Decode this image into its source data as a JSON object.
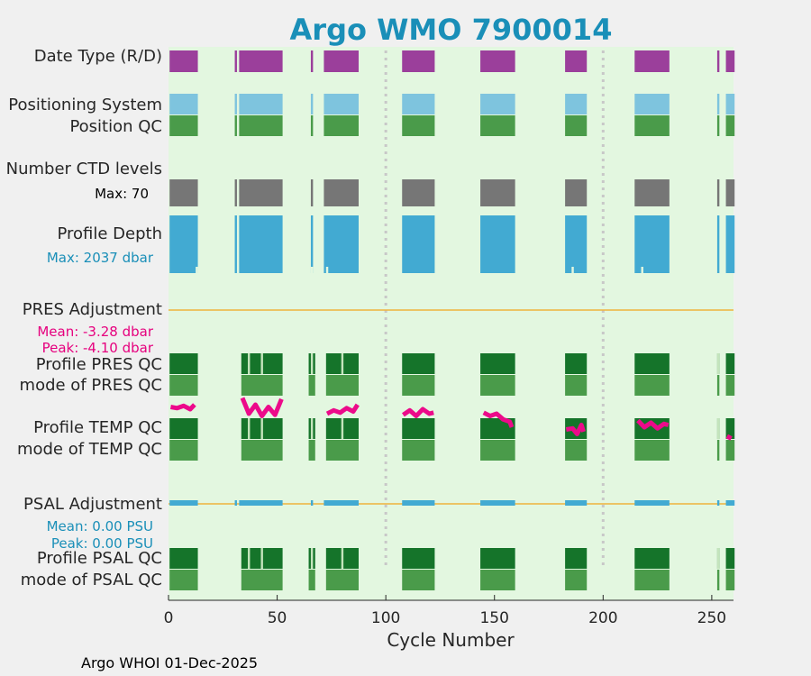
{
  "chart_data": {
    "type": "table",
    "title": "Argo WMO 7900014",
    "xlabel": "Cycle Number",
    "xlim": [
      0,
      260
    ],
    "xticks": [
      0,
      50,
      100,
      150,
      200,
      250
    ],
    "vlines": [
      100,
      200
    ],
    "footer": "Argo WHOI 01-Dec-2025",
    "segments": [
      [
        1,
        13
      ],
      [
        31,
        31
      ],
      [
        33,
        52
      ],
      [
        66,
        66
      ],
      [
        72,
        87
      ],
      [
        108,
        122
      ],
      [
        144,
        159
      ],
      [
        183,
        192
      ],
      [
        215,
        230
      ],
      [
        253,
        253
      ],
      [
        257,
        260
      ]
    ],
    "pres_segments": [
      [
        1,
        13
      ],
      [
        34,
        52
      ],
      [
        65,
        67
      ],
      [
        73,
        87
      ],
      [
        108,
        122
      ],
      [
        144,
        159
      ],
      [
        183,
        192
      ],
      [
        215,
        230
      ],
      [
        253,
        253
      ],
      [
        257,
        260
      ]
    ],
    "rows": {
      "date_type": {
        "label": "Date Type (R/D)",
        "color": "#9b3f9b"
      },
      "positioning": {
        "label": "Positioning System",
        "color": "#7ec4de"
      },
      "position_qc": {
        "label": "Position QC",
        "color": "#4a9b4a"
      },
      "ctd_levels": {
        "label": "Number CTD levels",
        "max_label": "Max: 70",
        "max": 70,
        "color": "#767676"
      },
      "profile_depth": {
        "label": "Profile Depth",
        "max_label": "Max: 2037 dbar",
        "max": 2037,
        "color": "#42aad2"
      },
      "pres_adjustment": {
        "label": "PRES Adjustment",
        "mean_label": "Mean: -3.28 dbar",
        "peak_label": "Peak: -4.10 dbar",
        "mean": -3.28,
        "peak": -4.1
      },
      "profile_pres_qc": {
        "label": "Profile PRES QC",
        "mode_label": "mode of PRES QC"
      },
      "profile_temp_qc": {
        "label": "Profile TEMP QC",
        "mode_label": "mode of TEMP QC"
      },
      "psal_adjustment": {
        "label": "PSAL Adjustment",
        "mean_label": "Mean: 0.00 PSU",
        "peak_label": "Peak: 0.00 PSU",
        "mean": 0.0,
        "peak": 0.0
      },
      "profile_psal_qc": {
        "label": "Profile PSAL QC",
        "mode_label": "mode of PSAL QC"
      }
    },
    "temp_adjustment_trace": [
      [
        1,
        0.3
      ],
      [
        4,
        0.35
      ],
      [
        7,
        0.25
      ],
      [
        10,
        0.4
      ],
      [
        12,
        0.2
      ],
      [
        34,
        -0.1
      ],
      [
        37,
        0.6
      ],
      [
        40,
        0.2
      ],
      [
        43,
        0.7
      ],
      [
        46,
        0.3
      ],
      [
        49,
        0.65
      ],
      [
        52,
        -0.05
      ],
      [
        73,
        0.6
      ],
      [
        76,
        0.45
      ],
      [
        79,
        0.55
      ],
      [
        82,
        0.35
      ],
      [
        85,
        0.5
      ],
      [
        87,
        0.2
      ],
      [
        108,
        0.65
      ],
      [
        111,
        0.45
      ],
      [
        114,
        0.7
      ],
      [
        117,
        0.4
      ],
      [
        120,
        0.6
      ],
      [
        122,
        0.55
      ],
      [
        145,
        0.55
      ],
      [
        148,
        0.7
      ],
      [
        151,
        0.6
      ],
      [
        154,
        0.85
      ],
      [
        157,
        0.95
      ],
      [
        158,
        1.2
      ],
      [
        183,
        1.3
      ],
      [
        186,
        1.25
      ],
      [
        188,
        1.5
      ],
      [
        190,
        1.1
      ],
      [
        191,
        1.4
      ],
      [
        216,
        0.9
      ],
      [
        219,
        1.2
      ],
      [
        222,
        1.0
      ],
      [
        225,
        1.25
      ],
      [
        228,
        1.05
      ],
      [
        230,
        1.1
      ],
      [
        257,
        1.6
      ],
      [
        259,
        1.7
      ]
    ],
    "colors": {
      "background": "#e3f7e0",
      "profile_qc": "#15742a",
      "mode_qc": "#4a9b4a",
      "mode_qc_light": "#c4e4bc",
      "adjust_line": "#f0b43c",
      "temp_adjust": "#ec0a8a",
      "psal_adjust_bar": "#42aad2",
      "vline": "#c8c8c8"
    }
  }
}
